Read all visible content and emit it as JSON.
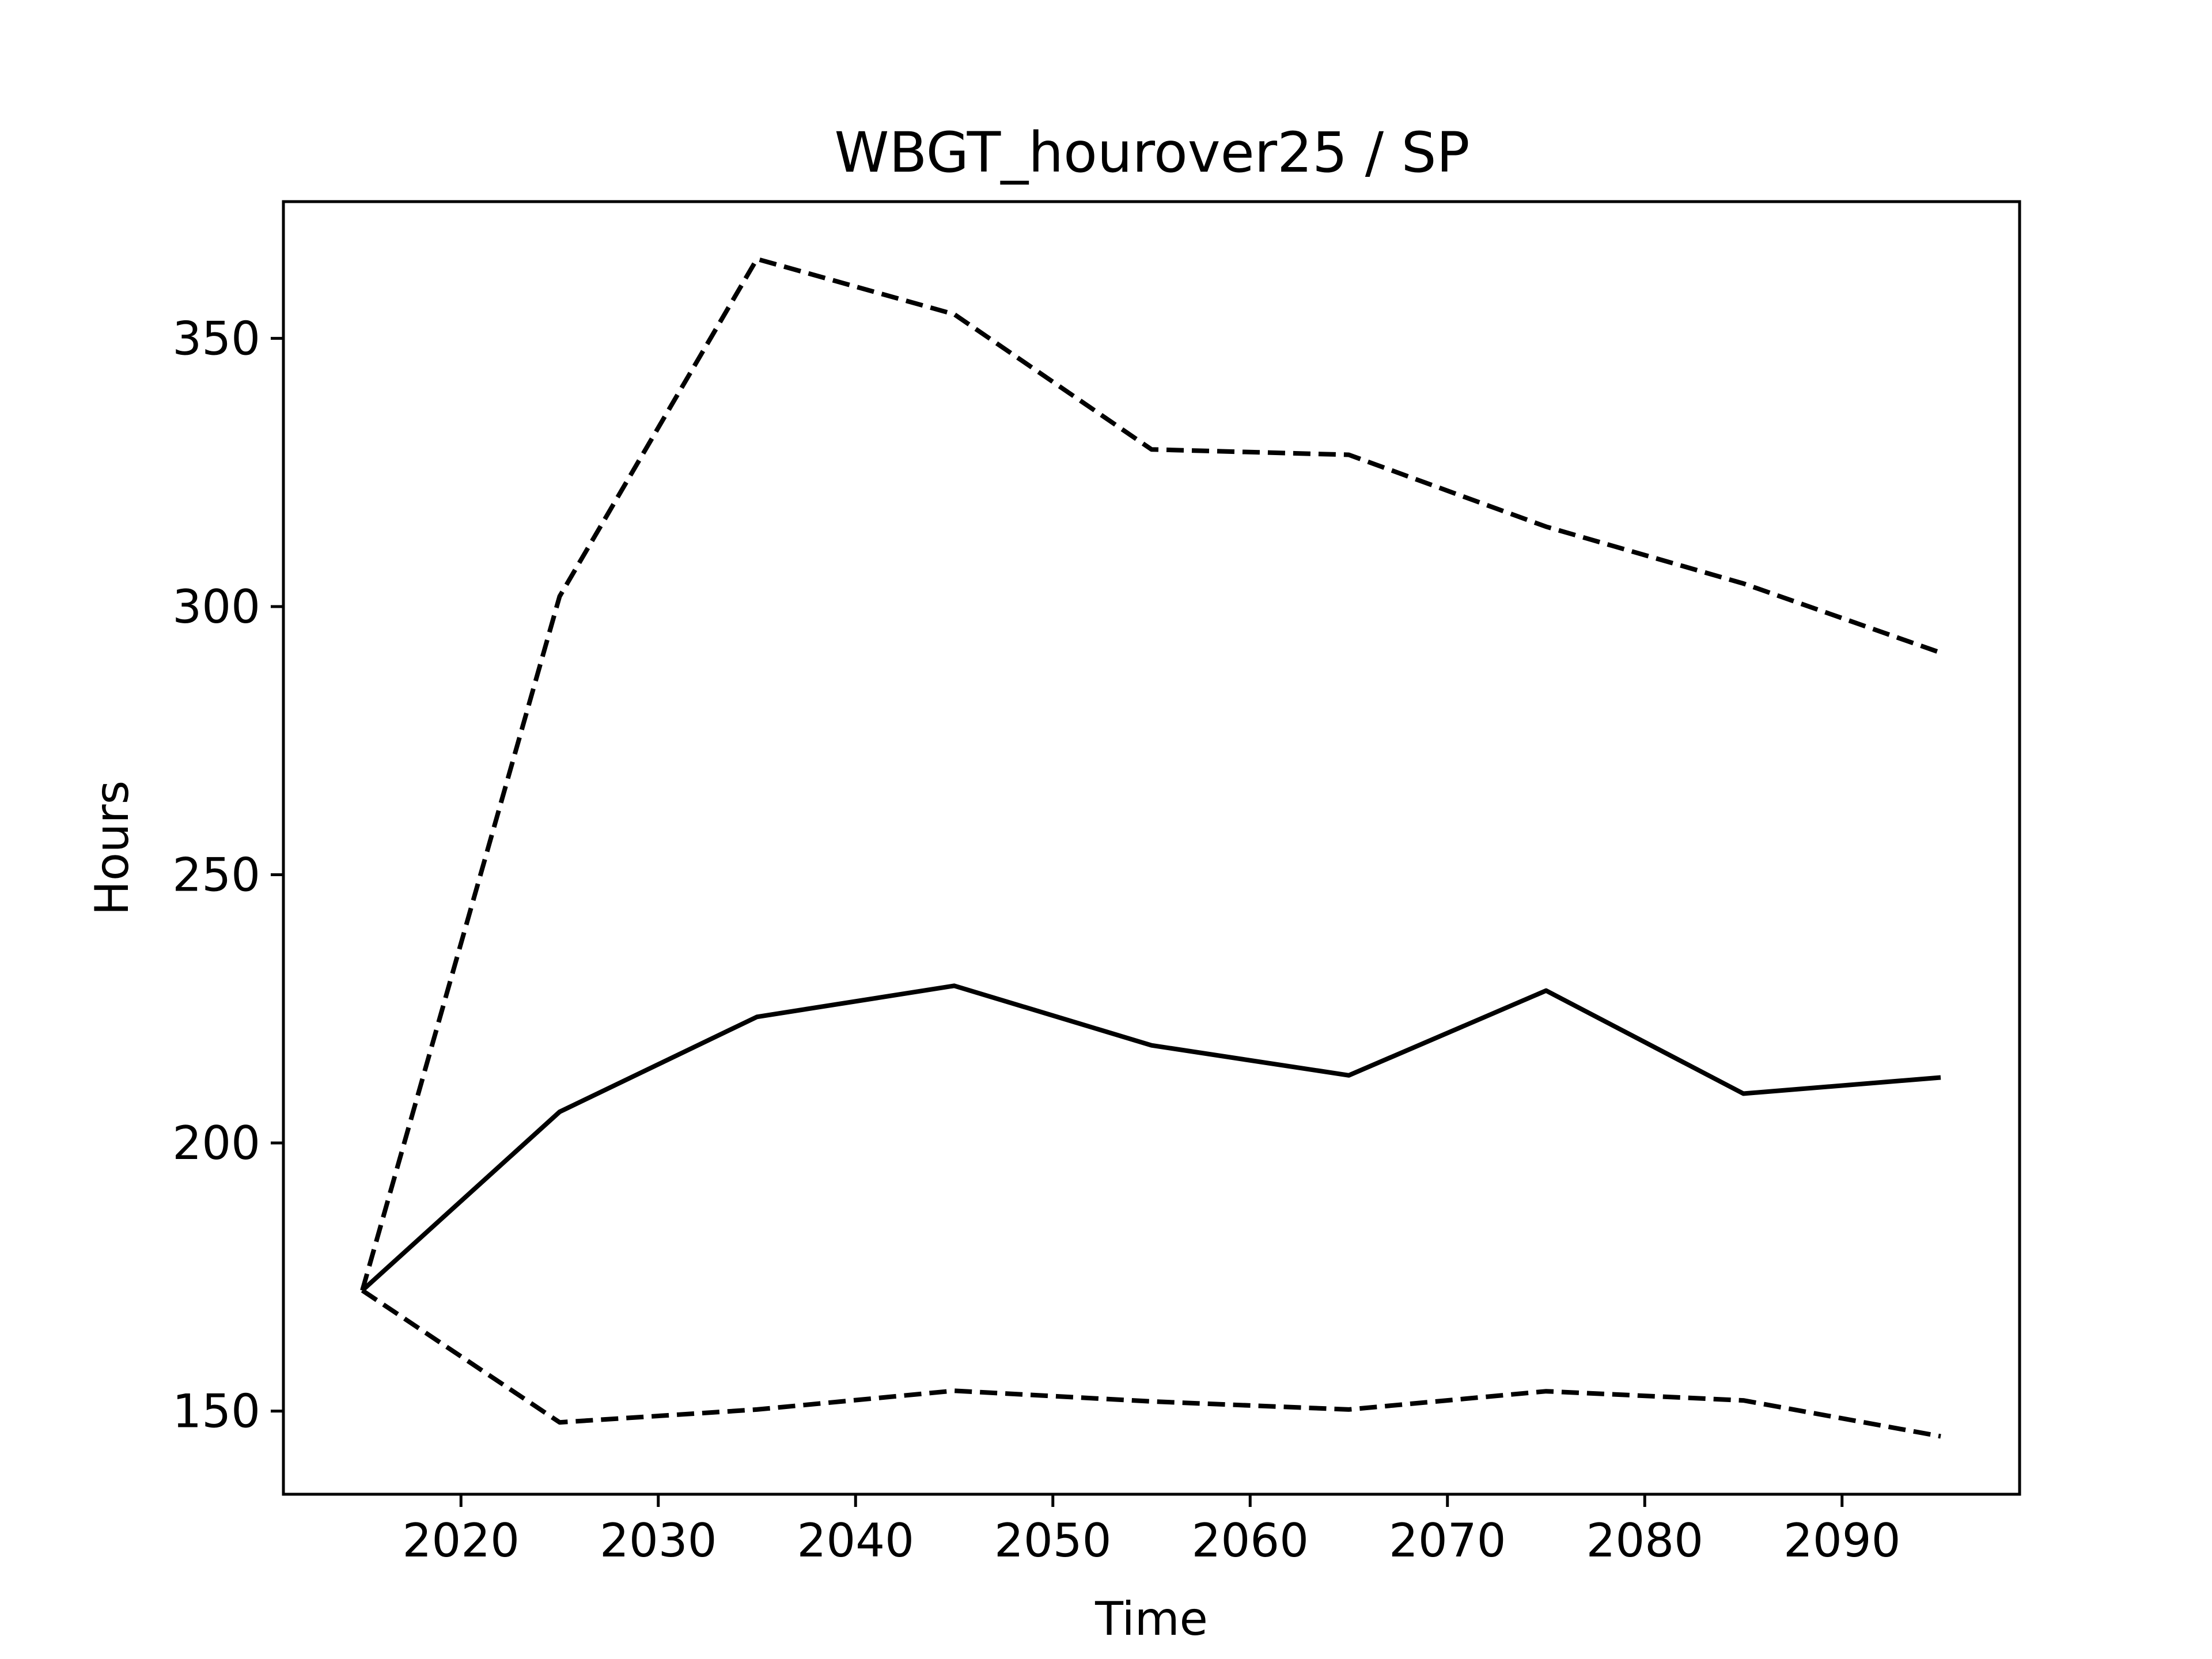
{
  "chart_data": {
    "type": "line",
    "title": "WBGT_hourover25 / SP",
    "xlabel": "Time",
    "ylabel": "Hours",
    "xlim": [
      2011,
      2099
    ],
    "ylim": [
      134.5,
      375.5
    ],
    "xticks": [
      2020,
      2030,
      2040,
      2050,
      2060,
      2070,
      2080,
      2090
    ],
    "yticks": [
      150,
      200,
      250,
      300,
      350
    ],
    "grid": false,
    "legend": "none",
    "x": [
      2015,
      2025,
      2035,
      2045,
      2055,
      2065,
      2075,
      2085,
      2095
    ],
    "series": [
      {
        "style": "solid",
        "color": "#000000",
        "values": [
          172.5,
          205.8,
          223.5,
          229.3,
          218.2,
          212.6,
          228.4,
          209.2,
          212.2
        ]
      },
      {
        "style": "dashed",
        "color": "#000000",
        "values": [
          172.5,
          301.9,
          364.8,
          354.5,
          329.3,
          328.3,
          314.9,
          304.3,
          291.4
        ]
      },
      {
        "style": "dashed",
        "color": "#000000",
        "values": [
          172.5,
          147.9,
          150.3,
          153.8,
          151.8,
          150.3,
          153.7,
          152.0,
          145.3
        ]
      }
    ]
  }
}
